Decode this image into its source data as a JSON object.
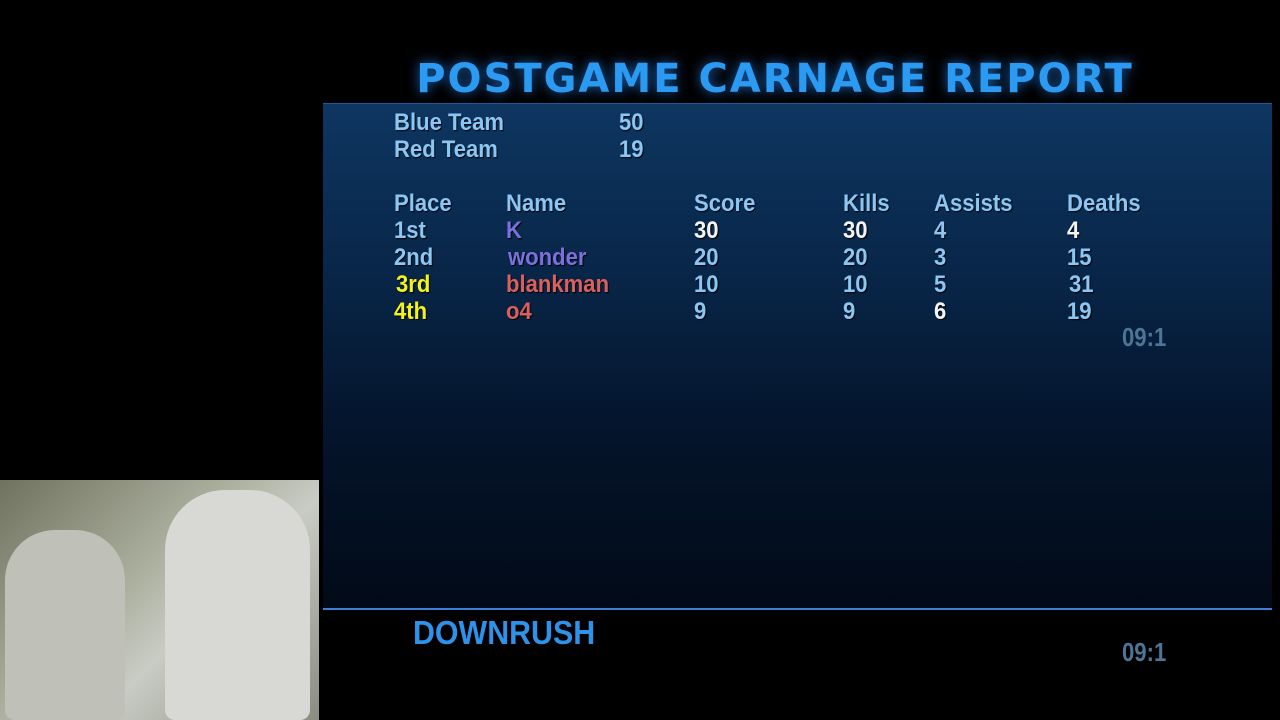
{
  "header": {
    "title": "POSTGAME CARNAGE REPORT"
  },
  "teams": [
    {
      "name": "Blue Team",
      "score": "50"
    },
    {
      "name": "Red Team",
      "score": "19"
    }
  ],
  "table": {
    "columns": [
      "Place",
      "Name",
      "Score",
      "Kills",
      "Assists",
      "Deaths"
    ],
    "rows": [
      {
        "place": "1st",
        "name": "K",
        "score": "30",
        "kills": "30",
        "assists": "4",
        "deaths": "4"
      },
      {
        "place": "2nd",
        "name": "wonder",
        "score": "20",
        "kills": "20",
        "assists": "3",
        "deaths": "15"
      },
      {
        "place": "3rd",
        "name": "blankman",
        "score": "10",
        "kills": "10",
        "assists": "5",
        "deaths": "31"
      },
      {
        "place": "4th",
        "name": "o4",
        "score": "9",
        "kills": "9",
        "assists": "6",
        "deaths": "19"
      }
    ]
  },
  "timer_top": "09:1",
  "footer": {
    "map": "DOWNRUSH",
    "timer": "09:1"
  },
  "colors": {
    "title": "#2a9af2",
    "text": "#8cc6f2",
    "blue_player": "#7b70dc",
    "red_player": "#d8605e",
    "highlight": "#f2f21e"
  }
}
